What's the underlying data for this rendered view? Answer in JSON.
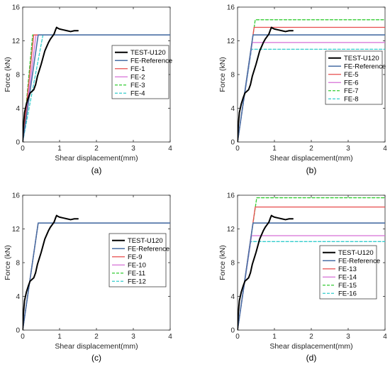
{
  "colors": {
    "test": "#000000",
    "reference": "#4a6fa5",
    "red": "#e74c4c",
    "magenta": "#d66fd6",
    "green": "#33cc33",
    "cyan": "#33cccc"
  },
  "chart_data": [
    {
      "type": "line",
      "caption": "(a)",
      "xlabel": "Shear displacement(mm)",
      "ylabel": "Force (kN)",
      "xlim": [
        0,
        4
      ],
      "ylim": [
        0,
        16
      ],
      "xticks": [
        0,
        1,
        2,
        3,
        4
      ],
      "yticks": [
        0,
        4,
        8,
        12,
        16
      ],
      "grid": false,
      "legend": "center-right",
      "series": [
        {
          "name": "TEST-U120",
          "color": "#000000",
          "dash": "solid",
          "width": 2,
          "x": [
            0,
            0.02,
            0.05,
            0.1,
            0.15,
            0.2,
            0.25,
            0.3,
            0.35,
            0.4,
            0.45,
            0.5,
            0.55,
            0.6,
            0.65,
            0.7,
            0.75,
            0.8,
            0.85,
            0.9,
            0.92,
            0.95,
            1.0,
            1.1,
            1.2,
            1.3,
            1.4,
            1.5
          ],
          "y": [
            0,
            2,
            3.5,
            4.5,
            5.2,
            5.8,
            6.0,
            6.2,
            6.8,
            7.8,
            8.5,
            9.2,
            10.0,
            10.8,
            11.3,
            11.8,
            12.2,
            12.5,
            12.8,
            13.4,
            13.6,
            13.5,
            13.4,
            13.3,
            13.2,
            13.1,
            13.2,
            13.2
          ]
        },
        {
          "name": "FE-Reference",
          "color": "#4a6fa5",
          "dash": "solid",
          "width": 1.6,
          "x": [
            0,
            0.42,
            4
          ],
          "y": [
            0,
            12.7,
            12.7
          ]
        },
        {
          "name": "FE-1",
          "color": "#e74c4c",
          "dash": "solid",
          "width": 1.3,
          "x": [
            0,
            0.3,
            4
          ],
          "y": [
            0,
            12.7,
            12.7
          ]
        },
        {
          "name": "FE-2",
          "color": "#d66fd6",
          "dash": "solid",
          "width": 1.3,
          "x": [
            0,
            0.36,
            4
          ],
          "y": [
            0,
            12.7,
            12.7
          ]
        },
        {
          "name": "FE-3",
          "color": "#33cc33",
          "dash": "dashed",
          "width": 1.3,
          "x": [
            0,
            0.27,
            4
          ],
          "y": [
            0,
            12.7,
            12.7
          ]
        },
        {
          "name": "FE-4",
          "color": "#33cccc",
          "dash": "dashed",
          "width": 1.3,
          "x": [
            0,
            0.55,
            4
          ],
          "y": [
            0,
            12.7,
            12.7
          ]
        }
      ]
    },
    {
      "type": "line",
      "caption": "(b)",
      "xlabel": "Shear displacement(mm)",
      "ylabel": "Force (kN)",
      "xlim": [
        0,
        4
      ],
      "ylim": [
        0,
        16
      ],
      "xticks": [
        0,
        1,
        2,
        3,
        4
      ],
      "yticks": [
        0,
        4,
        8,
        12,
        16
      ],
      "grid": false,
      "legend": "center-right",
      "series": [
        {
          "name": "TEST-U120",
          "color": "#000000",
          "dash": "solid",
          "width": 2,
          "x": [
            0,
            0.02,
            0.05,
            0.1,
            0.15,
            0.2,
            0.25,
            0.3,
            0.35,
            0.4,
            0.45,
            0.5,
            0.55,
            0.6,
            0.65,
            0.7,
            0.75,
            0.8,
            0.85,
            0.9,
            0.92,
            0.95,
            1.0,
            1.1,
            1.2,
            1.3,
            1.4,
            1.5
          ],
          "y": [
            0,
            2,
            3.5,
            4.5,
            5.2,
            5.8,
            6.0,
            6.2,
            6.8,
            7.8,
            8.5,
            9.2,
            10.0,
            10.8,
            11.3,
            11.8,
            12.2,
            12.5,
            12.8,
            13.4,
            13.6,
            13.5,
            13.4,
            13.3,
            13.2,
            13.1,
            13.2,
            13.2
          ]
        },
        {
          "name": "FE-Reference",
          "color": "#4a6fa5",
          "dash": "solid",
          "width": 1.6,
          "x": [
            0,
            0.42,
            4
          ],
          "y": [
            0,
            12.7,
            12.7
          ]
        },
        {
          "name": "FE-5",
          "color": "#e74c4c",
          "dash": "solid",
          "width": 1.3,
          "x": [
            0,
            0.45,
            4
          ],
          "y": [
            0,
            13.6,
            13.6
          ]
        },
        {
          "name": "FE-6",
          "color": "#d66fd6",
          "dash": "solid",
          "width": 1.3,
          "x": [
            0,
            0.4,
            4
          ],
          "y": [
            0,
            11.8,
            11.8
          ]
        },
        {
          "name": "FE-7",
          "color": "#33cc33",
          "dash": "dashed",
          "width": 1.3,
          "x": [
            0,
            0.48,
            4
          ],
          "y": [
            0,
            14.5,
            14.5
          ]
        },
        {
          "name": "FE-8",
          "color": "#33cccc",
          "dash": "dashed",
          "width": 1.3,
          "x": [
            0,
            0.38,
            4
          ],
          "y": [
            0,
            11.0,
            11.0
          ]
        }
      ]
    },
    {
      "type": "line",
      "caption": "(c)",
      "xlabel": "Shear displacement(mm)",
      "ylabel": "Force (kN)",
      "xlim": [
        0,
        4
      ],
      "ylim": [
        0,
        16
      ],
      "xticks": [
        0,
        1,
        2,
        3,
        4
      ],
      "yticks": [
        0,
        4,
        8,
        12,
        16
      ],
      "grid": false,
      "legend": "center-right",
      "series": [
        {
          "name": "TEST-U120",
          "color": "#000000",
          "dash": "solid",
          "width": 2,
          "x": [
            0,
            0.02,
            0.05,
            0.1,
            0.15,
            0.2,
            0.25,
            0.3,
            0.35,
            0.4,
            0.45,
            0.5,
            0.55,
            0.6,
            0.65,
            0.7,
            0.75,
            0.8,
            0.85,
            0.9,
            0.92,
            0.95,
            1.0,
            1.1,
            1.2,
            1.3,
            1.4,
            1.5
          ],
          "y": [
            0,
            2,
            3.5,
            4.5,
            5.2,
            5.8,
            6.0,
            6.2,
            6.8,
            7.8,
            8.5,
            9.2,
            10.0,
            10.8,
            11.3,
            11.8,
            12.2,
            12.5,
            12.8,
            13.4,
            13.6,
            13.5,
            13.4,
            13.3,
            13.2,
            13.1,
            13.2,
            13.2
          ]
        },
        {
          "name": "FE-Reference",
          "color": "#4a6fa5",
          "dash": "solid",
          "width": 1.6,
          "x": [
            0,
            0.42,
            4
          ],
          "y": [
            0,
            12.7,
            12.7
          ]
        },
        {
          "name": "FE-9",
          "color": "#e74c4c",
          "dash": "solid",
          "width": 1.3,
          "x": [
            0,
            0.42,
            4
          ],
          "y": [
            0,
            12.7,
            12.7
          ]
        },
        {
          "name": "FE-10",
          "color": "#d66fd6",
          "dash": "solid",
          "width": 1.3,
          "x": [
            0,
            0.42,
            4
          ],
          "y": [
            0,
            12.7,
            12.7
          ]
        },
        {
          "name": "FE-11",
          "color": "#33cc33",
          "dash": "dashed",
          "width": 1.3,
          "x": [
            0,
            0.42,
            4
          ],
          "y": [
            0,
            12.7,
            12.7
          ]
        },
        {
          "name": "FE-12",
          "color": "#33cccc",
          "dash": "dashed",
          "width": 1.3,
          "x": [
            0,
            0.42,
            4
          ],
          "y": [
            0,
            12.7,
            12.7
          ]
        }
      ]
    },
    {
      "type": "line",
      "caption": "(d)",
      "xlabel": "Shear displacement(mm)",
      "ylabel": "Force (kN)",
      "xlim": [
        0,
        4
      ],
      "ylim": [
        0,
        16
      ],
      "xticks": [
        0,
        1,
        2,
        3,
        4
      ],
      "yticks": [
        0,
        4,
        8,
        12,
        16
      ],
      "grid": false,
      "legend": "center-right",
      "series": [
        {
          "name": "TEST-U120",
          "color": "#000000",
          "dash": "solid",
          "width": 2,
          "x": [
            0,
            0.02,
            0.05,
            0.1,
            0.15,
            0.2,
            0.25,
            0.3,
            0.35,
            0.4,
            0.45,
            0.5,
            0.55,
            0.6,
            0.65,
            0.7,
            0.75,
            0.8,
            0.85,
            0.9,
            0.92,
            0.95,
            1.0,
            1.1,
            1.2,
            1.3,
            1.4,
            1.5
          ],
          "y": [
            0,
            2,
            3.5,
            4.5,
            5.2,
            5.8,
            6.0,
            6.2,
            6.8,
            7.8,
            8.5,
            9.2,
            10.0,
            10.8,
            11.3,
            11.8,
            12.2,
            12.5,
            12.8,
            13.4,
            13.6,
            13.5,
            13.4,
            13.3,
            13.2,
            13.1,
            13.2,
            13.2
          ]
        },
        {
          "name": "FE-Reference",
          "color": "#4a6fa5",
          "dash": "solid",
          "width": 1.6,
          "x": [
            0,
            0.42,
            4
          ],
          "y": [
            0,
            12.7,
            12.7
          ]
        },
        {
          "name": "FE-13",
          "color": "#e74c4c",
          "dash": "solid",
          "width": 1.3,
          "x": [
            0,
            0.48,
            4
          ],
          "y": [
            0,
            14.6,
            14.6
          ]
        },
        {
          "name": "FE-14",
          "color": "#d66fd6",
          "dash": "solid",
          "width": 1.3,
          "x": [
            0,
            0.38,
            4
          ],
          "y": [
            0,
            11.2,
            11.2
          ]
        },
        {
          "name": "FE-15",
          "color": "#33cc33",
          "dash": "dashed",
          "width": 1.3,
          "x": [
            0,
            0.52,
            4
          ],
          "y": [
            0,
            15.7,
            15.7
          ]
        },
        {
          "name": "FE-16",
          "color": "#33cccc",
          "dash": "dashed",
          "width": 1.3,
          "x": [
            0,
            0.36,
            4
          ],
          "y": [
            0,
            10.5,
            10.5
          ]
        }
      ]
    }
  ]
}
